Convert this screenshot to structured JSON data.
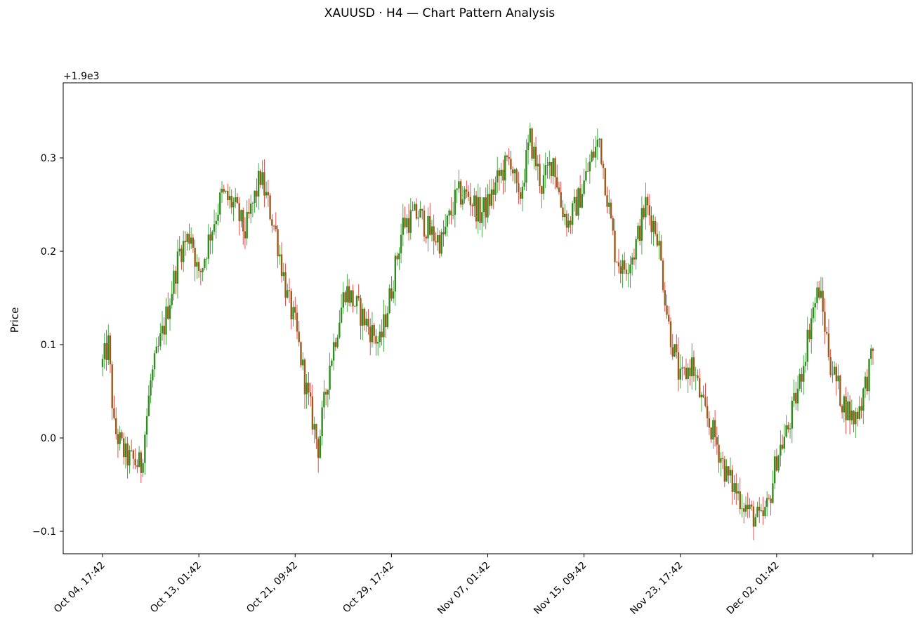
{
  "figure": {
    "title": "XAUUSD · H4  —  Chart Pattern Analysis"
  },
  "axes": {
    "ylabel": "Price",
    "offset_text": "+1.9e3",
    "y_tick_labels": [
      "−0.1",
      "0.0",
      "0.1",
      "0.2",
      "0.3"
    ],
    "x_tick_labels": [
      "Oct 04, 17:42",
      "Oct 13, 01:42",
      "Oct 21, 09:42",
      "Oct 29, 17:42",
      "Nov 07, 01:42",
      "Nov 15, 09:42",
      "Nov 23, 17:42",
      "Dec 02, 01:42"
    ]
  },
  "chart_data": {
    "type": "candlestick",
    "title": "XAUUSD · H4  —  Chart Pattern Analysis",
    "xlabel": "",
    "ylabel": "Price",
    "y_offset": 1900,
    "ylim": [
      1899.875,
      1900.381
    ],
    "y_ticks": [
      1899.9,
      1900.0,
      1900.1,
      1900.2,
      1900.3
    ],
    "grid": false,
    "bar_interval_hours": 4,
    "colors": {
      "up": "#1a9a1a",
      "down": "#e62020",
      "up_body": "#2f8c1d",
      "down_body": "#9a5a18"
    },
    "anchors": [
      {
        "i": 0,
        "x": "Oct 04, 17:42",
        "close": 1900.08
      },
      {
        "i": 3,
        "x": "Oct 05, 05:42",
        "close": 1900.1
      },
      {
        "i": 6,
        "x": "Oct 05, 17:42",
        "close": 1900.01
      },
      {
        "i": 12,
        "x": "Oct 06, 17:42",
        "close": 1899.98
      },
      {
        "i": 20,
        "x": "Oct 08, 01:42",
        "close": 1899.97
      },
      {
        "i": 25,
        "x": "Oct 08, 21:42",
        "close": 1900.06
      },
      {
        "i": 32,
        "x": "Oct 10, 01:42",
        "close": 1900.12
      },
      {
        "i": 40,
        "x": "Oct 11, 09:42",
        "close": 1900.2
      },
      {
        "i": 46,
        "x": "Oct 12, 09:42",
        "close": 1900.22
      },
      {
        "i": 50,
        "x": "Oct 13, 01:42",
        "close": 1900.17
      },
      {
        "i": 56,
        "x": "Oct 14, 01:42",
        "close": 1900.22
      },
      {
        "i": 62,
        "x": "Oct 15, 01:42",
        "close": 1900.26
      },
      {
        "i": 68,
        "x": "Oct 16, 01:42",
        "close": 1900.25
      },
      {
        "i": 74,
        "x": "Oct 17, 01:42",
        "close": 1900.22
      },
      {
        "i": 82,
        "x": "Oct 18, 09:42",
        "close": 1900.28
      },
      {
        "i": 86,
        "x": "Oct 19, 01:42",
        "close": 1900.25
      },
      {
        "i": 90,
        "x": "Oct 19, 17:42",
        "close": 1900.22
      },
      {
        "i": 96,
        "x": "Oct 20, 17:42",
        "close": 1900.15
      },
      {
        "i": 100,
        "x": "Oct 21, 09:42",
        "close": 1900.12
      },
      {
        "i": 106,
        "x": "Oct 22, 09:42",
        "close": 1900.05
      },
      {
        "i": 112,
        "x": "Oct 23, 09:42",
        "close": 1899.99
      },
      {
        "i": 118,
        "x": "Oct 24, 09:42",
        "close": 1900.08
      },
      {
        "i": 126,
        "x": "Oct 25, 17:42",
        "close": 1900.16
      },
      {
        "i": 132,
        "x": "Oct 26, 17:42",
        "close": 1900.14
      },
      {
        "i": 138,
        "x": "Oct 27, 17:42",
        "close": 1900.12
      },
      {
        "i": 144,
        "x": "Oct 28, 17:42",
        "close": 1900.1
      },
      {
        "i": 150,
        "x": "Oct 29, 17:42",
        "close": 1900.16
      },
      {
        "i": 156,
        "x": "Oct 30, 17:42",
        "close": 1900.23
      },
      {
        "i": 164,
        "x": "Nov 01, 01:42",
        "close": 1900.24
      },
      {
        "i": 170,
        "x": "Nov 02, 01:42",
        "close": 1900.22
      },
      {
        "i": 176,
        "x": "Nov 03, 01:42",
        "close": 1900.21
      },
      {
        "i": 184,
        "x": "Nov 04, 09:42",
        "close": 1900.26
      },
      {
        "i": 190,
        "x": "Nov 05, 09:42",
        "close": 1900.26
      },
      {
        "i": 196,
        "x": "Nov 06, 09:42",
        "close": 1900.24
      },
      {
        "i": 200,
        "x": "Nov 07, 01:42",
        "close": 1900.25
      },
      {
        "i": 206,
        "x": "Nov 08, 01:42",
        "close": 1900.28
      },
      {
        "i": 212,
        "x": "Nov 09, 01:42",
        "close": 1900.3
      },
      {
        "i": 216,
        "x": "Nov 09, 17:42",
        "close": 1900.25
      },
      {
        "i": 222,
        "x": "Nov 10, 17:42",
        "close": 1900.32
      },
      {
        "i": 228,
        "x": "Nov 11, 17:42",
        "close": 1900.27
      },
      {
        "i": 234,
        "x": "Nov 12, 17:42",
        "close": 1900.3
      },
      {
        "i": 238,
        "x": "Nov 13, 09:42",
        "close": 1900.25
      },
      {
        "i": 242,
        "x": "Nov 14, 01:42",
        "close": 1900.23
      },
      {
        "i": 248,
        "x": "Nov 15, 01:42",
        "close": 1900.26
      },
      {
        "i": 254,
        "x": "Nov 16, 01:42",
        "close": 1900.3
      },
      {
        "i": 258,
        "x": "Nov 16, 17:42",
        "close": 1900.32
      },
      {
        "i": 262,
        "x": "Nov 17, 09:42",
        "close": 1900.26
      },
      {
        "i": 266,
        "x": "Nov 18, 01:42",
        "close": 1900.2
      },
      {
        "i": 270,
        "x": "Nov 18, 17:42",
        "close": 1900.18
      },
      {
        "i": 276,
        "x": "Nov 19, 17:42",
        "close": 1900.2
      },
      {
        "i": 282,
        "x": "Nov 20, 17:42",
        "close": 1900.25
      },
      {
        "i": 288,
        "x": "Nov 21, 17:42",
        "close": 1900.22
      },
      {
        "i": 294,
        "x": "Nov 22, 17:42",
        "close": 1900.12
      },
      {
        "i": 300,
        "x": "Nov 23, 17:42",
        "close": 1900.06
      },
      {
        "i": 306,
        "x": "Nov 24, 17:42",
        "close": 1900.08
      },
      {
        "i": 312,
        "x": "Nov 25, 17:42",
        "close": 1900.03
      },
      {
        "i": 318,
        "x": "Nov 26, 17:42",
        "close": 1900.0
      },
      {
        "i": 324,
        "x": "Nov 27, 17:42",
        "close": 1899.96
      },
      {
        "i": 330,
        "x": "Nov 28, 17:42",
        "close": 1899.94
      },
      {
        "i": 336,
        "x": "Nov 29, 17:42",
        "close": 1899.92
      },
      {
        "i": 342,
        "x": "Nov 30, 17:42",
        "close": 1899.91
      },
      {
        "i": 346,
        "x": "Dec 01, 09:42",
        "close": 1899.93
      },
      {
        "i": 350,
        "x": "Dec 02, 01:42",
        "close": 1899.98
      },
      {
        "i": 356,
        "x": "Dec 03, 01:42",
        "close": 1900.01
      },
      {
        "i": 362,
        "x": "Dec 04, 01:42",
        "close": 1900.06
      },
      {
        "i": 368,
        "x": "Dec 05, 01:42",
        "close": 1900.13
      },
      {
        "i": 372,
        "x": "Dec 05, 17:42",
        "close": 1900.16
      },
      {
        "i": 378,
        "x": "Dec 06, 17:42",
        "close": 1900.08
      },
      {
        "i": 384,
        "x": "Dec 07, 17:42",
        "close": 1900.04
      },
      {
        "i": 390,
        "x": "Dec 08, 17:42",
        "close": 1900.02
      },
      {
        "i": 394,
        "x": "Dec 09, 09:42",
        "close": 1900.04
      },
      {
        "i": 400,
        "x": "Dec 10, 09:42",
        "close": 1900.09
      }
    ]
  }
}
